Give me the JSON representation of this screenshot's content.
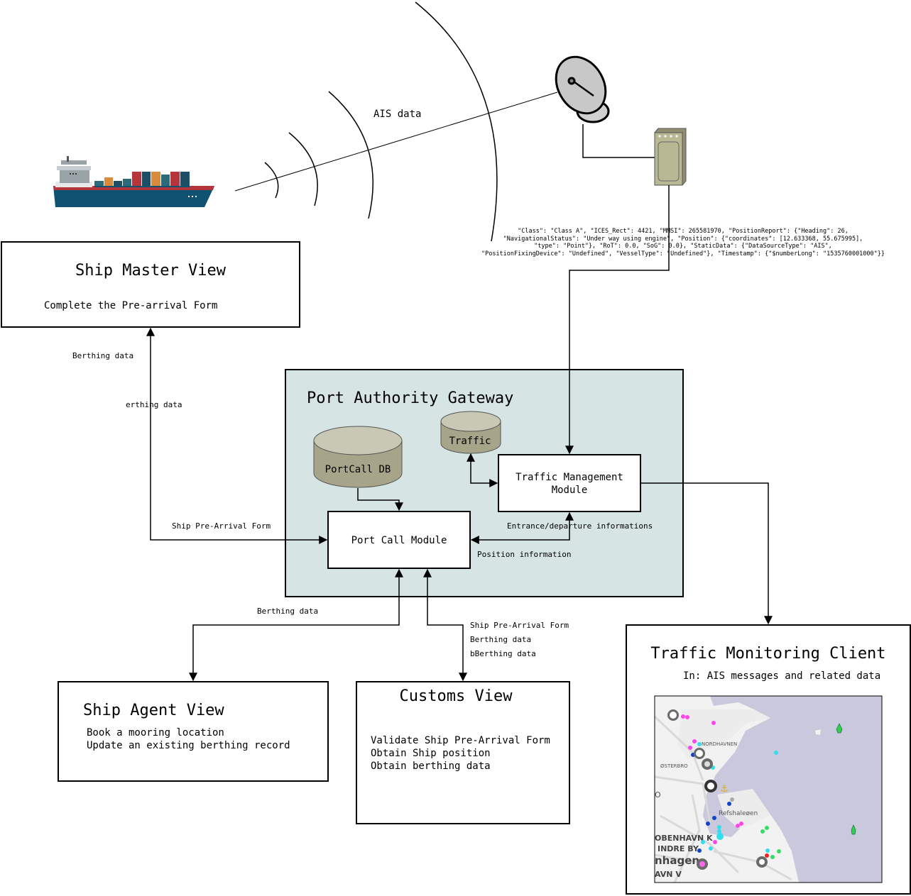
{
  "ais_label": "AIS data",
  "ais_json_lines": [
    "\"Class\": \"Class A\", \"ICES_Rect\": 4421, \"MMSI\": 265581970, \"PositionReport\": {\"Heading\": 26,",
    "\"NavigationalStatus\": \"Under way using engine\", \"Position\": {\"coordinates\": [12.633368, 55.675995],",
    "\"type\": \"Point\"}, \"RoT\": 0.0, \"SoG\": 0.0}, \"StaticData\": {\"DataSourceType\": \"AIS\",",
    "\"PositionFixingDevice\": \"Undefined\", \"VesselType\": \"Undefined\"}, \"Timestamp\": {\"$numberLong\": \"1535760001000\"}}"
  ],
  "ship_master": {
    "title": "Ship Master View",
    "subtitle": "Complete the Pre-arrival Form"
  },
  "edge_labels": {
    "master_berthing_1": "Berthing data",
    "master_berthing_2": "erthing data",
    "ship_prearrival": "Ship Pre-Arrival Form",
    "entrance_departure": "Entrance/departure informations",
    "position_info": "Position information",
    "agent_berthing": "Berthing data",
    "customs_1": "Ship Pre-Arrival Form",
    "customs_2": "Berthing data",
    "customs_3": "bBerthing data"
  },
  "gateway": {
    "title": "Port Authority Gateway",
    "portcall_db": "PortCall DB",
    "traffic_db": "Traffic",
    "traffic_module_line1": "Traffic Management",
    "traffic_module_line2": "Module",
    "port_call_module": "Port Call Module"
  },
  "ship_agent": {
    "title": "Ship Agent View",
    "lines": [
      "Book a mooring location",
      "Update an existing berthing record"
    ]
  },
  "customs": {
    "title": "Customs View",
    "lines": [
      "Validate Ship Pre-Arrival Form",
      "Obtain Ship position",
      "Obtain berthing data"
    ]
  },
  "traffic_client": {
    "title": "Traffic Monitoring Client",
    "subtitle": "In: AIS messages and related data"
  },
  "map": {
    "labels": {
      "nordhavnen": "NORDHAVNEN",
      "osterbro": "ØSTERBRO",
      "refshaleoen": "Refshaleøen",
      "obenhavn_k": "OBENHAVN K",
      "indre_by": "INDRE BY",
      "nhagen": "nhagen",
      "avn_v": "AVN V",
      "o": "O"
    },
    "colors": {
      "water": "#c9c8dc",
      "land": "#f2f2f2",
      "road": "#d9d9d9"
    }
  },
  "colors": {
    "gateway_fill": "#d6e4e4",
    "db_fill": "#a6a58a",
    "db_top": "#c9c8b4",
    "ship_hull": "#0f5272",
    "ship_stripe": "#b5353c",
    "device_fill": "#b8b894"
  }
}
